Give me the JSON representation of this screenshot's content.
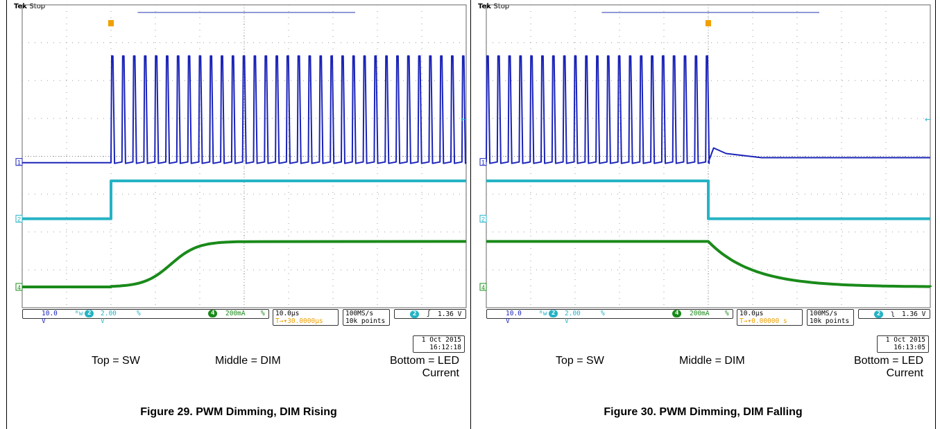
{
  "panels": [
    {
      "brand": "Tek",
      "state": "Stop",
      "ch1_label": "1",
      "ch1_scale": "10.0 V",
      "bw_symbol": "ᴮw",
      "ch2_label": "2",
      "ch2_scale": "2.00 V",
      "pct": "%",
      "ch4_label": "4",
      "ch4_scale": "200mA",
      "timebase": "10.0μs",
      "delay": "30.0000μs",
      "sample_rate": "100MS/s",
      "record": "10k points",
      "trig_ch": "2",
      "trig_edge": "rising",
      "trig_level": "1.36 V",
      "date": "1 Oct  2015",
      "time": "16:12:18",
      "legend_top": "Top = SW",
      "legend_middle": "Middle = DIM",
      "legend_bottom_1": "Bottom = LED",
      "legend_bottom_2": "Current",
      "caption": "Figure 29. PWM Dimming, DIM Rising"
    },
    {
      "brand": "Tek",
      "state": "Stop",
      "ch1_label": "1",
      "ch1_scale": "10.0 V",
      "bw_symbol": "ᴮw",
      "ch2_label": "2",
      "ch2_scale": "2.00 V",
      "pct": "%",
      "ch4_label": "4",
      "ch4_scale": "200mA",
      "timebase": "10.0μs",
      "delay": "0.00000 s",
      "sample_rate": "100MS/s",
      "record": "10k points",
      "trig_ch": "2",
      "trig_edge": "falling",
      "trig_level": "1.36 V",
      "date": "1 Oct  2015",
      "time": "16:13:05",
      "legend_top": "Top = SW",
      "legend_middle": "Middle = DIM",
      "legend_bottom_1": "Bottom = LED",
      "legend_bottom_2": "Current",
      "caption": "Figure 30. PWM Dimming, DIM Falling"
    }
  ],
  "colors": {
    "ch1": "#1a23b8",
    "ch2": "#24b3c4",
    "ch4": "#1a8a1a",
    "trigger": "#f0a000",
    "grid": "#9a9a9a"
  },
  "chart_data": [
    {
      "type": "line",
      "title": "Figure 29. PWM Dimming, DIM Rising",
      "xlabel": "",
      "ylabel": "",
      "x_divisions": 10,
      "y_divisions": 8,
      "grid": true,
      "trigger_div": 2,
      "series": [
        {
          "name": "Top = SW",
          "channel": "1",
          "kind": "pwm",
          "start_div": 2.0,
          "end_div": 10,
          "period_div": 0.247,
          "baseline_div": 3.85,
          "high_div": 6.65
        },
        {
          "name": "Middle = DIM",
          "channel": "2",
          "kind": "step",
          "edge_div": 2.0,
          "before_div": 2.35,
          "after_div": 3.35
        },
        {
          "name": "Bottom = LED Current",
          "channel": "4",
          "kind": "ramp",
          "start_div": 2.0,
          "end_div": 5.0,
          "before_div": 0.55,
          "after_div": 1.75
        }
      ]
    },
    {
      "type": "line",
      "title": "Figure 30. PWM Dimming, DIM Falling",
      "xlabel": "",
      "ylabel": "",
      "x_divisions": 10,
      "y_divisions": 8,
      "grid": true,
      "trigger_div": 5,
      "series": [
        {
          "name": "Top = SW",
          "channel": "1",
          "kind": "pwm",
          "start_div": 0,
          "end_div": 5.0,
          "period_div": 0.247,
          "baseline_div": 3.85,
          "high_div": 6.65,
          "after_div": 4.0
        },
        {
          "name": "Middle = DIM",
          "channel": "2",
          "kind": "step",
          "edge_div": 5.0,
          "before_div": 3.35,
          "after_div": 2.35
        },
        {
          "name": "Bottom = LED Current",
          "channel": "4",
          "kind": "decay",
          "start_div": 5.0,
          "end_div": 10,
          "before_div": 1.75,
          "after_div": 0.55
        }
      ]
    }
  ]
}
